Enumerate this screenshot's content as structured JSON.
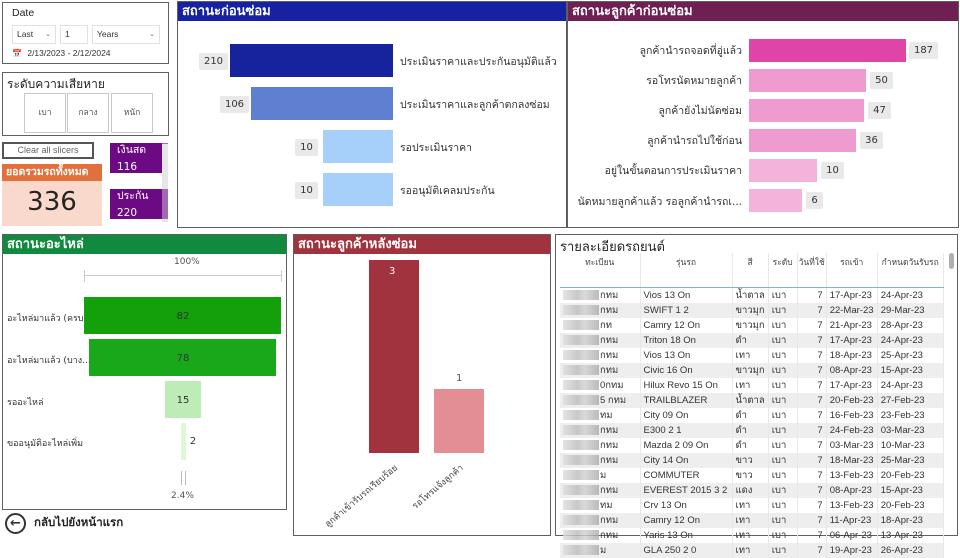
{
  "date_slicer": {
    "label": "Date",
    "relative": "Last",
    "count": "1",
    "unit": "Years",
    "range": "2/13/2023 - 2/12/2024"
  },
  "severity_slicer": {
    "label": "ระดับความเสียหาย",
    "options": [
      "เบา",
      "กลาง",
      "หนัก"
    ]
  },
  "clear_slicers_label": "Clear all slicers",
  "total_card": {
    "label": "ยอดรวมรถทั้งหมด",
    "value": "336"
  },
  "payment_cards": [
    {
      "label": "เงินสด",
      "value": "116"
    },
    {
      "label": "ประกัน",
      "value": "220"
    }
  ],
  "colors": {
    "before_repair_title": "#1722a3",
    "cust_before_title": "#6d2051",
    "parts_title": "#0f8a3e",
    "after_repair_title": "#a1333f",
    "total_header": "#e2703a",
    "payment_card": "#6b0a82"
  },
  "before_repair": {
    "title": "สถานะก่อนซ่อม",
    "items": [
      {
        "label": "ประเมินราคาและประกันอนุมัติแล้ว",
        "value": "210",
        "color": "#16239c"
      },
      {
        "label": "ประเมินราคาและลูกค้าตกลงซ่อม",
        "value": "106",
        "color": "#5f7fd0"
      },
      {
        "label": "รอประเมินราคา",
        "value": "10",
        "color": "#a6d0fa"
      },
      {
        "label": "รออนุมัติเคลมประกัน",
        "value": "10",
        "color": "#a6d0fa"
      }
    ]
  },
  "cust_before": {
    "title": "สถานะลูกค้าก่อนซ่อม",
    "items": [
      {
        "label": "ลูกค้านำรถจอดที่อู่แล้ว",
        "value": "187",
        "color": "#df45a6"
      },
      {
        "label": "รอโทรนัดหมายลูกค้า",
        "value": "50",
        "color": "#ee9bcf"
      },
      {
        "label": "ลูกค้ายังไม่นัดซ่อม",
        "value": "47",
        "color": "#ee9bcf"
      },
      {
        "label": "ลูกค้านำรถไปใช้ก่อน",
        "value": "36",
        "color": "#ee9bcf"
      },
      {
        "label": "อยู่ในขั้นตอนการประเมินราคา",
        "value": "10",
        "color": "#f3b3da"
      },
      {
        "label": "นัดหมายลูกค้าแล้ว รอลูกค้านำรถเ...",
        "value": "6",
        "color": "#f3b3da"
      }
    ]
  },
  "parts": {
    "title": "สถานะอะไหล่",
    "top_pct": "100%",
    "bottom_pct": "2.4%",
    "items": [
      {
        "label": "อะไหล่มาแล้ว (ครบ)",
        "value": "82",
        "color": "#14a00a"
      },
      {
        "label": "อะไหล่มาแล้ว (บาง...",
        "value": "78",
        "color": "#18a81a"
      },
      {
        "label": "รออะไหล่",
        "value": "15",
        "color": "#bdecb6"
      },
      {
        "label": "ขออนุมัติอะไหล่เพิ่ม",
        "value": "2",
        "color": "#ddf7d8"
      }
    ]
  },
  "after_repair": {
    "title": "สถานะลูกค้าหลังซ่อม",
    "items": [
      {
        "label": "ลูกค้าเข้ารับรถเรียบร้อย",
        "value": "3",
        "color": "#a1333f"
      },
      {
        "label": "รอโทรแจ้งลูกค้า",
        "value": "1",
        "color": "#e38d95"
      }
    ]
  },
  "chart_data": [
    {
      "type": "bar",
      "title": "สถานะก่อนซ่อม",
      "categories": [
        "ประเมินราคาและประกันอนุมัติแล้ว",
        "ประเมินราคาและลูกค้าตกลงซ่อม",
        "รอประเมินราคา",
        "รออนุมัติเคลมประกัน"
      ],
      "values": [
        210,
        106,
        10,
        10
      ]
    },
    {
      "type": "bar",
      "title": "สถานะลูกค้าก่อนซ่อม",
      "categories": [
        "ลูกค้านำรถจอดที่อู่แล้ว",
        "รอโทรนัดหมายลูกค้า",
        "ลูกค้ายังไม่นัดซ่อม",
        "ลูกค้านำรถไปใช้ก่อน",
        "อยู่ในขั้นตอนการประเมินราคา",
        "นัดหมายลูกค้าแล้ว รอลูกค้านำรถเ..."
      ],
      "values": [
        187,
        50,
        47,
        36,
        10,
        6
      ]
    },
    {
      "type": "bar",
      "title": "สถานะอะไหล่",
      "categories": [
        "อะไหล่มาแล้ว (ครบ)",
        "อะไหล่มาแล้ว (บาง...",
        "รออะไหล่",
        "ขออนุมัติอะไหล่เพิ่ม"
      ],
      "values": [
        82,
        78,
        15,
        2
      ],
      "annotations": [
        "100%",
        "2.4%"
      ]
    },
    {
      "type": "bar",
      "title": "สถานะลูกค้าหลังซ่อม",
      "categories": [
        "ลูกค้าเข้ารับรถเรียบร้อย",
        "รอโทรแจ้งลูกค้า"
      ],
      "values": [
        3,
        1
      ]
    }
  ],
  "vehicle_table": {
    "title": "รายละเอียดรถยนต์",
    "columns": [
      "ทะเบียน",
      "รุ่นรถ",
      "สี",
      "ระดับ",
      "วันที่ใช้",
      "รถเข้า",
      "กำหนดวันรับรถ"
    ],
    "rows": [
      [
        "กทม",
        "Vios 13 On",
        "น้ำตาล",
        "เบา",
        "7",
        "17-Apr-23",
        "24-Apr-23"
      ],
      [
        "กทม",
        "SWIFT 1 2",
        "ขาวมุก",
        "เบา",
        "7",
        "22-Mar-23",
        "29-Mar-23"
      ],
      [
        "กท",
        "Camry 12 On",
        "ขาวมุก",
        "เบา",
        "7",
        "21-Apr-23",
        "28-Apr-23"
      ],
      [
        "กทม",
        "Triton 18 On",
        "ดำ",
        "เบา",
        "7",
        "17-Apr-23",
        "24-Apr-23"
      ],
      [
        "กทม",
        "Vios 13 On",
        "เทา",
        "เบา",
        "7",
        "18-Apr-23",
        "25-Apr-23"
      ],
      [
        "กทม",
        "Civic 16 On",
        "ขาวมุก",
        "เบา",
        "7",
        "08-Apr-23",
        "15-Apr-23"
      ],
      [
        "0กทม",
        "Hilux Revo 15 On",
        "เทา",
        "เบา",
        "7",
        "17-Apr-23",
        "24-Apr-23"
      ],
      [
        "5 กทม",
        "TRAILBLAZER",
        "น้ำตาล",
        "เบา",
        "7",
        "20-Feb-23",
        "27-Feb-23"
      ],
      [
        "ทม",
        "City 09 On",
        "ดำ",
        "เบา",
        "7",
        "16-Feb-23",
        "23-Feb-23"
      ],
      [
        "กทม",
        "E300 2 1",
        "ดำ",
        "เบา",
        "7",
        "24-Feb-23",
        "03-Mar-23"
      ],
      [
        "กทม",
        "Mazda 2 09 On",
        "ดำ",
        "เบา",
        "7",
        "03-Mar-23",
        "10-Mar-23"
      ],
      [
        "กทม",
        "City 14 On",
        "ขาว",
        "เบา",
        "7",
        "18-Mar-23",
        "25-Mar-23"
      ],
      [
        "ม",
        "COMMUTER",
        "ขาว",
        "เบา",
        "7",
        "13-Feb-23",
        "20-Feb-23"
      ],
      [
        "กทม",
        "EVEREST 2015 3 2",
        "แดง",
        "เบา",
        "7",
        "08-Apr-23",
        "15-Apr-23"
      ],
      [
        "ทม",
        "Crv 13 On",
        "เทา",
        "เบา",
        "7",
        "13-Feb-23",
        "20-Feb-23"
      ],
      [
        "กทม",
        "Camry 12 On",
        "เทา",
        "เบา",
        "7",
        "11-Apr-23",
        "18-Apr-23"
      ],
      [
        "กทม",
        "Yaris 13 On",
        "เทา",
        "เบา",
        "7",
        "06-Apr-23",
        "13-Apr-23"
      ],
      [
        "ม",
        "GLA 250 2 0",
        "เทา",
        "เบา",
        "7",
        "19-Apr-23",
        "26-Apr-23"
      ]
    ]
  },
  "back_link": {
    "label": "กลับไปยังหน้าแรก"
  }
}
